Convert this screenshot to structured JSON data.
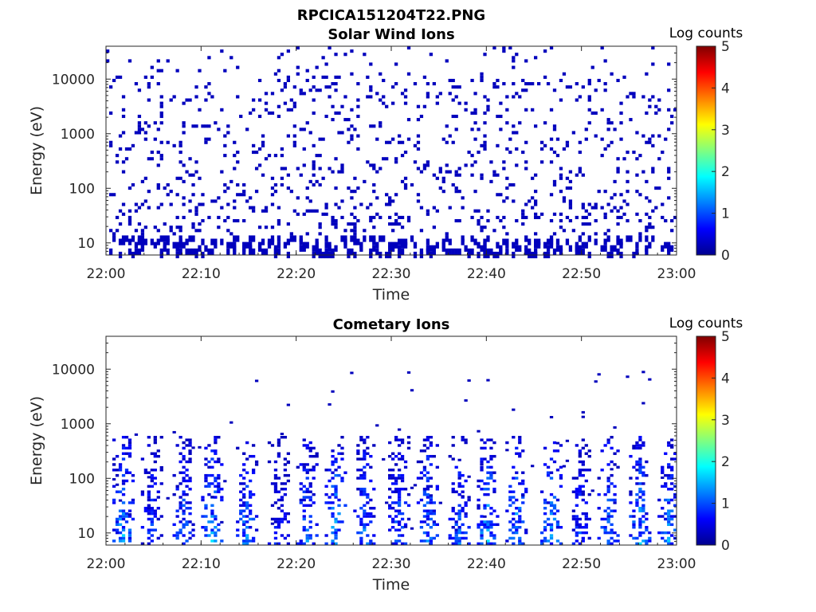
{
  "figure": {
    "title": "RPCICA151204T22.PNG"
  },
  "colorbar_ticks": [
    "0",
    "1",
    "2",
    "3",
    "4",
    "5"
  ],
  "chart_data": [
    {
      "type": "heatmap",
      "title": "Solar Wind Ions",
      "xlabel": "Time",
      "ylabel": "Energy (eV)",
      "x_ticks": [
        "22:00",
        "22:10",
        "22:20",
        "22:30",
        "22:40",
        "22:50",
        "23:00"
      ],
      "xlim": [
        "22:00",
        "23:00"
      ],
      "y_scale": "log",
      "y_ticks": [
        "10",
        "100",
        "1000",
        "10000"
      ],
      "ylim": [
        6,
        40000
      ],
      "colorbar": {
        "label": "Log counts",
        "range": [
          0,
          5
        ],
        "colormap": "jet"
      },
      "description_of_values": "Sparse low-count (log counts ~0, dark blue) pixels scattered across all times and energies 6 eV - 20 keV; denser at low energies below 20 eV.",
      "peak_log_counts": 0.3,
      "grid": false
    },
    {
      "type": "heatmap",
      "title": "Cometary Ions",
      "xlabel": "Time",
      "ylabel": "Energy (eV)",
      "x_ticks": [
        "22:00",
        "22:10",
        "22:20",
        "22:30",
        "22:40",
        "22:50",
        "23:00"
      ],
      "xlim": [
        "22:00",
        "23:00"
      ],
      "y_scale": "log",
      "y_ticks": [
        "10",
        "100",
        "1000",
        "10000"
      ],
      "ylim": [
        6,
        40000
      ],
      "colorbar": {
        "label": "Log counts",
        "range": [
          0,
          5
        ],
        "colormap": "jet"
      },
      "bursts_minutes": [
        1.5,
        4.5,
        8,
        11,
        14.5,
        18,
        21,
        24,
        27,
        30.5,
        33.5,
        37,
        40,
        43,
        46.5,
        49.5,
        52.5,
        56,
        59
      ],
      "burst_peak_log_counts": [
        1.8,
        1.2,
        1.4,
        1.8,
        1.6,
        1.0,
        1.5,
        1.9,
        1.5,
        1.4,
        1.6,
        1.4,
        1.9,
        1.8,
        1.8,
        1.2,
        1.6,
        1.8,
        1.7
      ],
      "burst_energy_range_eV": [
        6,
        600
      ],
      "grid": false
    }
  ]
}
